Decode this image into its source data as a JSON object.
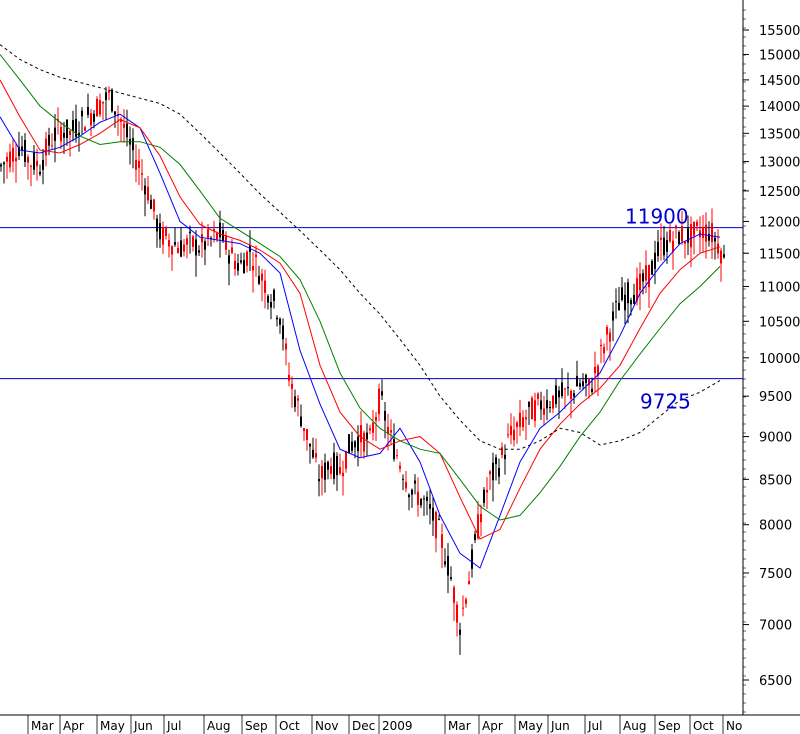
{
  "chart_data": {
    "type": "candlestick",
    "title": "",
    "xlabel": "",
    "ylabel": "",
    "y_scale": "log",
    "ylim": [
      6200,
      15900
    ],
    "grid": false,
    "legend": "none",
    "y_ticks": [
      6500,
      7000,
      7500,
      8000,
      8500,
      9000,
      9500,
      10000,
      10500,
      11000,
      11500,
      12000,
      12500,
      13000,
      13500,
      14000,
      14500,
      15000,
      15500
    ],
    "x_ticks": [
      "Mar",
      "Apr",
      "May",
      "Jun",
      "Jul",
      "Aug",
      "Sep",
      "Oct",
      "Nov",
      "Dec",
      "2009",
      "Mar",
      "Apr",
      "May",
      "Jun",
      "Jul",
      "Aug",
      "Sep",
      "Oct",
      "No"
    ],
    "horizontal_lines": [
      {
        "value": 11900,
        "label": "11900",
        "color": "#0000cc"
      },
      {
        "value": 9725,
        "label": "9725",
        "color": "#0000cc"
      }
    ],
    "colors": {
      "up": "#000000",
      "down": "#ff0000",
      "ma_short": "#0000ff",
      "ma_mid": "#ff0000",
      "ma_long": "#008000",
      "ma_slow": "#000000"
    },
    "closes": {
      "note_units": "index points, approximate weekly path",
      "x": [
        0,
        10,
        20,
        30,
        40,
        50,
        60,
        70,
        80,
        90,
        100,
        110,
        120,
        130,
        140,
        150,
        160,
        170,
        180,
        190,
        200,
        210,
        220,
        230,
        240,
        250,
        260,
        270,
        280,
        290,
        300,
        310,
        320,
        330,
        340,
        350,
        360,
        370,
        380,
        390,
        400,
        410,
        420,
        430,
        440,
        450,
        460,
        470,
        480,
        490,
        500,
        510,
        520,
        530,
        540,
        550,
        560,
        570,
        580,
        590,
        600,
        610,
        620,
        630,
        640,
        650,
        660,
        670,
        680,
        690,
        700,
        710,
        720,
        725
      ],
      "y": [
        12900,
        13100,
        13300,
        13000,
        12950,
        13350,
        13600,
        13500,
        13700,
        13850,
        14050,
        14200,
        13800,
        13300,
        12900,
        12400,
        11800,
        11700,
        11600,
        11650,
        11600,
        11700,
        11800,
        11500,
        11300,
        11550,
        11200,
        10900,
        10600,
        9700,
        9300,
        8900,
        8500,
        8700,
        8600,
        8900,
        9000,
        8950,
        9500,
        9000,
        8700,
        8400,
        8300,
        8150,
        7900,
        7500,
        7000,
        7500,
        8100,
        8500,
        8700,
        9000,
        9150,
        9300,
        9400,
        9450,
        9500,
        9550,
        9650,
        9600,
        10000,
        10400,
        10800,
        10900,
        11000,
        11200,
        11600,
        11700,
        11800,
        11750,
        11850,
        11850,
        11600,
        11350
      ]
    },
    "moving_averages": [
      {
        "color": "#0000ff",
        "style": "solid",
        "x": [
          0,
          20,
          40,
          60,
          80,
          100,
          120,
          140,
          160,
          180,
          200,
          220,
          240,
          260,
          280,
          300,
          320,
          340,
          360,
          380,
          400,
          420,
          440,
          460,
          480,
          500,
          520,
          540,
          560,
          580,
          600,
          620,
          640,
          660,
          680,
          700,
          720
        ],
        "y": [
          13800,
          13200,
          13150,
          13250,
          13450,
          13700,
          13850,
          13600,
          12800,
          12000,
          11750,
          11700,
          11650,
          11500,
          11200,
          10100,
          9400,
          8850,
          8750,
          8800,
          9100,
          8700,
          8100,
          7700,
          7550,
          8100,
          8700,
          9100,
          9300,
          9550,
          9800,
          10300,
          10900,
          11300,
          11650,
          11800,
          11750
        ]
      },
      {
        "color": "#ff0000",
        "style": "solid",
        "x": [
          0,
          20,
          40,
          60,
          80,
          100,
          120,
          140,
          160,
          180,
          200,
          220,
          240,
          260,
          280,
          300,
          320,
          340,
          360,
          380,
          400,
          420,
          440,
          460,
          480,
          500,
          520,
          540,
          560,
          580,
          600,
          620,
          640,
          660,
          680,
          700,
          720
        ],
        "y": [
          14500,
          13800,
          13200,
          13150,
          13300,
          13500,
          13750,
          13600,
          13100,
          12400,
          11950,
          11800,
          11700,
          11550,
          11350,
          10900,
          9900,
          9300,
          9000,
          8850,
          8950,
          9000,
          8800,
          8300,
          7850,
          7950,
          8400,
          8850,
          9150,
          9400,
          9600,
          9900,
          10400,
          10900,
          11250,
          11500,
          11600
        ]
      },
      {
        "color": "#008000",
        "style": "solid",
        "x": [
          0,
          20,
          40,
          60,
          80,
          100,
          120,
          140,
          160,
          180,
          200,
          220,
          240,
          260,
          280,
          300,
          320,
          340,
          360,
          380,
          400,
          420,
          440,
          460,
          480,
          500,
          520,
          540,
          560,
          580,
          600,
          620,
          640,
          660,
          680,
          700,
          720
        ],
        "y": [
          15000,
          14500,
          14000,
          13700,
          13450,
          13300,
          13350,
          13350,
          13250,
          12950,
          12500,
          12050,
          11850,
          11650,
          11450,
          11100,
          10500,
          9800,
          9350,
          9100,
          8950,
          8850,
          8800,
          8500,
          8200,
          8050,
          8100,
          8350,
          8650,
          9000,
          9300,
          9700,
          10050,
          10400,
          10750,
          11000,
          11300
        ]
      },
      {
        "color": "#000000",
        "style": "dashed",
        "x": [
          0,
          20,
          40,
          60,
          80,
          100,
          120,
          140,
          160,
          180,
          200,
          220,
          240,
          260,
          280,
          300,
          320,
          340,
          360,
          380,
          400,
          420,
          440,
          460,
          480,
          500,
          520,
          540,
          560,
          580,
          600,
          620,
          640,
          660,
          680,
          700,
          720
        ],
        "y": [
          15200,
          14900,
          14700,
          14550,
          14450,
          14350,
          14250,
          14150,
          14050,
          13850,
          13500,
          13150,
          12800,
          12450,
          12150,
          11850,
          11550,
          11250,
          10900,
          10600,
          10250,
          9900,
          9500,
          9200,
          8950,
          8850,
          8850,
          8950,
          9100,
          9050,
          8900,
          8950,
          9050,
          9250,
          9450,
          9550,
          9700
        ]
      }
    ]
  }
}
